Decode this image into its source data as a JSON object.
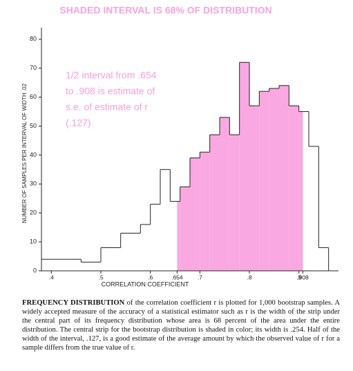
{
  "chart_data": {
    "type": "histogram",
    "title": "SHADED INTERVAL IS 68% OF DISTRIBUTION",
    "xlabel": "CORRELATION COEFFICIENT",
    "ylabel": "NUMBER OF SAMPLES PER INTERVAL OF WIDTH .02",
    "annotation": [
      "1/2 interval from .654",
      "to .908 is estimate of",
      "s.e. of estimate of r",
      "(.127)"
    ],
    "annotation_color": "#f4a0dc",
    "bins": [
      0.38,
      0.46,
      0.5,
      0.54,
      0.58,
      0.6,
      0.62,
      0.64,
      0.66,
      0.68,
      0.7,
      0.72,
      0.74,
      0.76,
      0.78,
      0.8,
      0.82,
      0.84,
      0.86,
      0.88,
      0.9,
      0.92,
      0.94,
      0.96
    ],
    "values": [
      4,
      3,
      8,
      13,
      16,
      23,
      35,
      24,
      29,
      39,
      41,
      47,
      53,
      47,
      72,
      57,
      62,
      63,
      64,
      57,
      55,
      43,
      8
    ],
    "shade": {
      "from": 0.654,
      "to": 0.908,
      "color": "#f9a8e2"
    },
    "line_color": "#222222",
    "xlim": [
      0.38,
      0.98
    ],
    "ylim": [
      0,
      84
    ],
    "xticks": [
      {
        "value": 0.4,
        "label": ".4"
      },
      {
        "value": 0.5,
        "label": ".5"
      },
      {
        "value": 0.6,
        "label": ".6"
      },
      {
        "value": 0.654,
        "label": ".654"
      },
      {
        "value": 0.7,
        "label": ".7"
      },
      {
        "value": 0.8,
        "label": ".8"
      },
      {
        "value": 0.9,
        "label": ".9"
      },
      {
        "value": 0.908,
        "label": ".908"
      }
    ],
    "yticks": [
      0,
      10,
      20,
      30,
      40,
      50,
      60,
      70,
      80
    ]
  },
  "caption": {
    "lead": "FREQUENCY DISTRIBUTION",
    "text": "of the correlation coefficient r is plotted for 1,000 bootstrap samples. A widely accepted measure of the accuracy of a statistical estimator such as r is the width of the strip under the central part of its frequency distribution whose area is 68 percent of the area under the entire distribution. The central strip for the bootstrap distribution is shaded in color; its width is .254. Half of the width of the interval, .127, is a good estimate of the average amount by which the observed value of r for a sample differs from the true value of r."
  }
}
